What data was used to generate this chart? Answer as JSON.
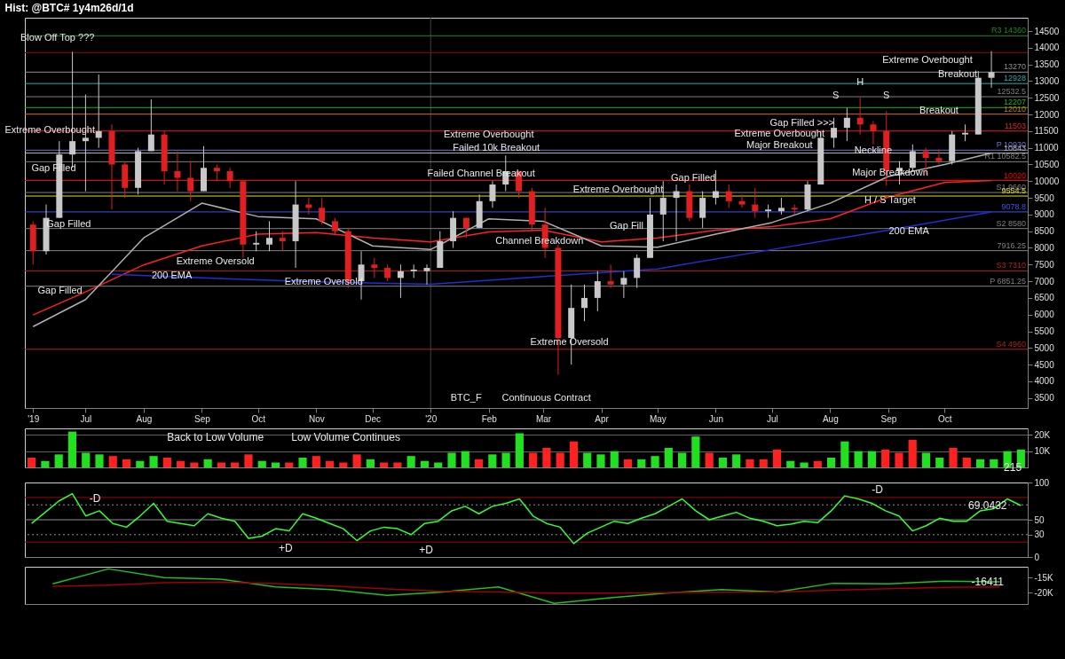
{
  "chart_data": [
    {
      "type": "candlestick",
      "title": "Hist: @BTC# 1y4m26d/1d",
      "x": [
        "2019-06-03",
        "2019-06-10",
        "2019-06-17",
        "2019-06-24",
        "2019-07-01",
        "2019-07-08",
        "2019-07-15",
        "2019-07-22",
        "2019-07-29",
        "2019-08-05",
        "2019-08-12",
        "2019-08-19",
        "2019-08-26",
        "2019-09-02",
        "2019-09-09",
        "2019-09-16",
        "2019-09-23",
        "2019-09-30",
        "2019-10-07",
        "2019-10-14",
        "2019-10-21",
        "2019-10-28",
        "2019-11-04",
        "2019-11-11",
        "2019-11-18",
        "2019-11-25",
        "2019-12-02",
        "2019-12-09",
        "2019-12-16",
        "2019-12-23",
        "2019-12-30",
        "2020-01-06",
        "2020-01-13",
        "2020-01-20",
        "2020-01-27",
        "2020-02-03",
        "2020-02-10",
        "2020-02-17",
        "2020-02-24",
        "2020-03-02",
        "2020-03-09",
        "2020-03-16",
        "2020-03-23",
        "2020-03-30",
        "2020-04-06",
        "2020-04-13",
        "2020-04-20",
        "2020-04-27",
        "2020-05-04",
        "2020-05-11",
        "2020-05-18",
        "2020-05-25",
        "2020-06-01",
        "2020-06-08",
        "2020-06-15",
        "2020-06-22",
        "2020-06-29",
        "2020-07-06",
        "2020-07-13",
        "2020-07-20",
        "2020-07-27",
        "2020-08-03",
        "2020-08-10",
        "2020-08-17",
        "2020-08-24",
        "2020-08-31",
        "2020-09-07",
        "2020-09-14",
        "2020-09-21",
        "2020-09-28",
        "2020-10-05",
        "2020-10-12",
        "2020-10-19",
        "2020-10-26"
      ],
      "ohlc": [
        [
          8700,
          8800,
          7500,
          7900
        ],
        [
          7900,
          9300,
          7800,
          8900
        ],
        [
          8900,
          11200,
          8900,
          10800
        ],
        [
          10800,
          13880,
          10400,
          11200
        ],
        [
          11200,
          12600,
          9700,
          11300
        ],
        [
          11300,
          13200,
          11000,
          11500
        ],
        [
          11500,
          11700,
          9150,
          10500
        ],
        [
          10500,
          10600,
          9500,
          9800
        ],
        [
          9800,
          11000,
          9600,
          10900
        ],
        [
          10900,
          12450,
          10900,
          11400
        ],
        [
          11400,
          11500,
          9900,
          10300
        ],
        [
          10300,
          10900,
          9700,
          10100
        ],
        [
          10100,
          10600,
          9400,
          9700
        ],
        [
          9700,
          11050,
          9700,
          10400
        ],
        [
          10400,
          10500,
          10000,
          10300
        ],
        [
          10300,
          10400,
          9800,
          10000
        ],
        [
          10000,
          10000,
          7700,
          8100
        ],
        [
          8100,
          8500,
          7900,
          8150
        ],
        [
          8100,
          8800,
          7900,
          8300
        ],
        [
          8300,
          8500,
          7900,
          8200
        ],
        [
          8200,
          10000,
          7400,
          9300
        ],
        [
          9300,
          9500,
          9000,
          9200
        ],
        [
          9200,
          9500,
          8700,
          8800
        ],
        [
          8800,
          8900,
          8400,
          8500
        ],
        [
          8500,
          8600,
          6800,
          7000
        ],
        [
          7000,
          7900,
          6450,
          7500
        ],
        [
          7500,
          7700,
          7100,
          7400
        ],
        [
          7400,
          7500,
          7000,
          7100
        ],
        [
          7100,
          7500,
          6500,
          7300
        ],
        [
          7300,
          7500,
          7100,
          7350
        ],
        [
          7300,
          7500,
          6900,
          7400
        ],
        [
          7400,
          8500,
          7400,
          8200
        ],
        [
          8200,
          9100,
          8000,
          8900
        ],
        [
          8900,
          8900,
          8300,
          8600
        ],
        [
          8600,
          9600,
          8600,
          9400
        ],
        [
          9400,
          10000,
          9200,
          9900
        ],
        [
          9900,
          10770,
          9700,
          10300
        ],
        [
          10300,
          10300,
          9500,
          9700
        ],
        [
          9700,
          9800,
          8500,
          8700
        ],
        [
          8700,
          9200,
          7700,
          8000
        ],
        [
          8000,
          8100,
          4200,
          5300
        ],
        [
          5300,
          6900,
          4500,
          6200
        ],
        [
          6200,
          6900,
          5800,
          6500
        ],
        [
          6500,
          7300,
          6100,
          7000
        ],
        [
          7000,
          7500,
          6800,
          6900
        ],
        [
          6900,
          7300,
          6500,
          7100
        ],
        [
          7100,
          7800,
          6800,
          7700
        ],
        [
          7700,
          9500,
          7700,
          9000
        ],
        [
          9000,
          10000,
          8200,
          9500
        ],
        [
          9500,
          9900,
          8200,
          9700
        ],
        [
          9700,
          9900,
          8800,
          8900
        ],
        [
          8900,
          9700,
          8600,
          9500
        ],
        [
          9500,
          10330,
          9300,
          9700
        ],
        [
          9700,
          9900,
          9200,
          9400
        ],
        [
          9400,
          9600,
          9200,
          9300
        ],
        [
          9300,
          9800,
          8900,
          9100
        ],
        [
          9100,
          9300,
          8900,
          9150
        ],
        [
          9100,
          9500,
          9000,
          9200
        ],
        [
          9200,
          9300,
          9000,
          9150
        ],
        [
          9150,
          10000,
          9100,
          9900
        ],
        [
          9900,
          11500,
          9900,
          11300
        ],
        [
          11300,
          11900,
          11000,
          11600
        ],
        [
          11600,
          12200,
          11200,
          11900
        ],
        [
          11900,
          12500,
          11400,
          11700
        ],
        [
          11700,
          11800,
          11100,
          11500
        ],
        [
          11500,
          12100,
          9870,
          10300
        ],
        [
          10300,
          10600,
          9900,
          10400
        ],
        [
          10400,
          11100,
          10300,
          10900
        ],
        [
          10900,
          11000,
          10200,
          10700
        ],
        [
          10700,
          10950,
          10500,
          10600
        ],
        [
          10600,
          11500,
          10500,
          11400
        ],
        [
          11400,
          11700,
          11200,
          11450
        ],
        [
          11400,
          13300,
          11400,
          13100
        ],
        [
          13100,
          13900,
          12800,
          13270
        ]
      ],
      "colors": [
        "#e02020",
        "#c8c8c8",
        "#c8c8c8",
        "#c8c8c8",
        "#c8c8c8",
        "#c8c8c8",
        "#e02020",
        "#e02020",
        "#c8c8c8",
        "#c8c8c8",
        "#e02020",
        "#e02020",
        "#e02020",
        "#c8c8c8",
        "#e02020",
        "#e02020",
        "#e02020",
        "#c8c8c8",
        "#c8c8c8",
        "#e02020",
        "#c8c8c8",
        "#e02020",
        "#e02020",
        "#e02020",
        "#e02020",
        "#c8c8c8",
        "#e02020",
        "#e02020",
        "#c8c8c8",
        "#c8c8c8",
        "#c8c8c8",
        "#c8c8c8",
        "#c8c8c8",
        "#e02020",
        "#c8c8c8",
        "#c8c8c8",
        "#c8c8c8",
        "#e02020",
        "#e02020",
        "#e02020",
        "#e02020",
        "#c8c8c8",
        "#c8c8c8",
        "#c8c8c8",
        "#e02020",
        "#c8c8c8",
        "#c8c8c8",
        "#c8c8c8",
        "#c8c8c8",
        "#c8c8c8",
        "#e02020",
        "#c8c8c8",
        "#c8c8c8",
        "#e02020",
        "#e02020",
        "#e02020",
        "#c8c8c8",
        "#c8c8c8",
        "#e02020",
        "#c8c8c8",
        "#c8c8c8",
        "#c8c8c8",
        "#c8c8c8",
        "#e02020",
        "#e02020",
        "#e02020",
        "#c8c8c8",
        "#c8c8c8",
        "#e02020",
        "#e02020",
        "#c8c8c8",
        "#c8c8c8",
        "#c8c8c8",
        "#c8c8c8"
      ],
      "series": [
        {
          "type": "line",
          "color": "#ff2020",
          "x": [
            "2019-06-03",
            "2019-07-01",
            "2019-08-01",
            "2019-09-01",
            "2019-10-01",
            "2019-11-01",
            "2019-12-01",
            "2020-01-01",
            "2020-02-01",
            "2020-03-01",
            "2020-04-01",
            "2020-05-01",
            "2020-06-01",
            "2020-07-01",
            "2020-08-01",
            "2020-09-01",
            "2020-10-01",
            "2020-10-26"
          ],
          "values": [
            5990,
            6680,
            7490,
            8060,
            8410,
            8460,
            8300,
            8180,
            8480,
            8530,
            8180,
            8300,
            8530,
            8640,
            8870,
            9520,
            9960,
            10020
          ]
        },
        {
          "type": "line",
          "color": "#b0b0b0",
          "x": [
            "2019-06-03",
            "2019-07-01",
            "2019-08-01",
            "2019-09-01",
            "2019-10-01",
            "2019-11-01",
            "2019-12-01",
            "2020-01-01",
            "2020-02-01",
            "2020-03-01",
            "2020-04-01",
            "2020-05-01",
            "2020-06-01",
            "2020-07-01",
            "2020-08-01",
            "2020-09-01",
            "2020-10-01",
            "2020-10-26"
          ],
          "values": [
            5640,
            6450,
            8300,
            9340,
            8940,
            8870,
            8060,
            7950,
            8870,
            8800,
            8060,
            8020,
            8410,
            8760,
            9340,
            10140,
            10500,
            10843
          ]
        },
        {
          "type": "line",
          "color": "#2030d0",
          "x": [
            "2019-07-15",
            "2019-09-01",
            "2019-11-01",
            "2020-01-01",
            "2020-03-01",
            "2020-05-01",
            "2020-07-01",
            "2020-09-01",
            "2020-10-26"
          ],
          "values": [
            7210,
            7100,
            6980,
            6910,
            7140,
            7370,
            7950,
            8530,
            9078.8
          ]
        }
      ],
      "xlim": [
        "2019-06-01",
        "2020-11-12"
      ],
      "xticks": [
        {
          "value": "2019-06-03",
          "label": "'19"
        },
        {
          "value": "2019-07-01",
          "label": "Jul"
        },
        {
          "value": "2019-08-01",
          "label": "Aug"
        },
        {
          "value": "2019-09-01",
          "label": "Sep"
        },
        {
          "value": "2019-10-01",
          "label": "Oct"
        },
        {
          "value": "2019-11-01",
          "label": "Nov"
        },
        {
          "value": "2019-12-01",
          "label": "Dec"
        },
        {
          "value": "2020-01-01",
          "label": "'20"
        },
        {
          "value": "2020-02-01",
          "label": "Feb"
        },
        {
          "value": "2020-03-01",
          "label": "Mar"
        },
        {
          "value": "2020-04-01",
          "label": "Apr"
        },
        {
          "value": "2020-05-01",
          "label": "May"
        },
        {
          "value": "2020-06-01",
          "label": "Jun"
        },
        {
          "value": "2020-07-01",
          "label": "Jul"
        },
        {
          "value": "2020-08-01",
          "label": "Aug"
        },
        {
          "value": "2020-09-01",
          "label": "Sep"
        },
        {
          "value": "2020-10-01",
          "label": "Oct"
        }
      ],
      "ylim": [
        3200,
        14900
      ],
      "yticks": [
        3500,
        4000,
        4500,
        5000,
        5500,
        6000,
        6500,
        7000,
        7500,
        8000,
        8500,
        9000,
        9500,
        10000,
        10500,
        11000,
        11500,
        12000,
        12500,
        13000,
        13500,
        14000,
        14500
      ],
      "ref_lines": [
        {
          "axis": "x",
          "value": "2020-01-01",
          "label": null,
          "color": "#404040"
        },
        {
          "axis": "y",
          "value": 14360,
          "label": "R3 14360",
          "color": "#1a8a1a"
        },
        {
          "axis": "y",
          "value": 13850,
          "label": null,
          "color": "#8b0000"
        },
        {
          "axis": "y",
          "value": 13270,
          "label": "13270",
          "color": "#909090"
        },
        {
          "axis": "y",
          "value": 12928,
          "label": "12928",
          "color": "#20b0b0"
        },
        {
          "axis": "y",
          "value": 12532.5,
          "label": "12532.5",
          "color": "#808080"
        },
        {
          "axis": "y",
          "value": 12207,
          "label": "12207",
          "color": "#20b020"
        },
        {
          "axis": "y",
          "value": 12010,
          "label": "12010",
          "color": "#d07020"
        },
        {
          "axis": "y",
          "value": 11503,
          "label": "11503",
          "color": "#e02020"
        },
        {
          "axis": "y",
          "value": 10930,
          "label": "P 10930",
          "color": "#7070d0"
        },
        {
          "axis": "y",
          "value": 10843,
          "label": "10843",
          "color": "#b8b8b8"
        },
        {
          "axis": "y",
          "value": 10582.5,
          "label": "R1 10582.5",
          "color": "#808080"
        },
        {
          "axis": "y",
          "value": 10020,
          "label": "10020",
          "color": "#ff0000"
        },
        {
          "axis": "y",
          "value": 9660,
          "label": "S1 9660",
          "color": "#808080"
        },
        {
          "axis": "y",
          "value": 9554.5,
          "label": "9554.5",
          "color": "#e0e020"
        },
        {
          "axis": "y",
          "value": 9078.8,
          "label": "9078.8",
          "color": "#4050f0"
        },
        {
          "axis": "y",
          "value": 8580,
          "label": "S2 8580",
          "color": "#808080"
        },
        {
          "axis": "y",
          "value": 7916.25,
          "label": "7916.25",
          "color": "#808080"
        },
        {
          "axis": "y",
          "value": 7310,
          "label": "S3 7310",
          "color": "#b02020"
        },
        {
          "axis": "y",
          "value": 6851.25,
          "label": "P 6851.25",
          "color": "#808080"
        },
        {
          "axis": "y",
          "value": 4960,
          "label": "S4 4960",
          "color": "#b02020"
        }
      ],
      "annotations": [
        {
          "text": "Blow Off Top ???",
          "x": "2019-06-16",
          "y": 14300
        },
        {
          "text": "Extreme Overbought",
          "x": "2019-06-12",
          "y": 11530
        },
        {
          "text": "Gap Filled",
          "x": "2019-06-14",
          "y": 10370
        },
        {
          "text": "Gap Filled",
          "x": "2019-06-22",
          "y": 8700
        },
        "Gap Filled",
        {
          "text": "200 EMA",
          "x": "2019-08-16",
          "y": 7150
        },
        "Extreme Oversold",
        {
          "text": "Extreme Oversold",
          "x": "2019-11-05",
          "y": 6980
        },
        "Failed Channel Breakout",
        {
          "text": "Failed 10k Breakout",
          "x": "2020-02-05",
          "y": 11000
        },
        {
          "text": "Extreme Overbought",
          "x": "2020-02-01",
          "y": 11400
        },
        {
          "text": "Channel Breakdown",
          "x": "2020-02-28",
          "y": 8200
        },
        {
          "text": "Extreme Oversold",
          "x": "2020-03-15",
          "y": 5180
        },
        {
          "text": "Extreme Overbought",
          "x": "2020-04-10",
          "y": 9750
        },
        "Gap Fill",
        {
          "text": "Gap Filled",
          "x": "2020-05-20",
          "y": 10100
        },
        "Gap Filled >>>",
        {
          "text": "Extreme Overbought",
          "x": "2020-07-05",
          "y": 11410
        },
        {
          "text": "Major Breakout",
          "x": "2020-07-05",
          "y": 11070
        },
        {
          "text": "S",
          "x": "2020-08-04",
          "y": 12550
        },
        {
          "text": "H",
          "x": "2020-08-17",
          "y": 12960
        },
        {
          "text": "S",
          "x": "2020-08-31",
          "y": 12550
        },
        {
          "text": "Neckline",
          "x": "2020-08-24",
          "y": 10900
        },
        {
          "text": "Major Breakdown",
          "x": "2020-09-02",
          "y": 10240
        },
        {
          "text": "H / S Target",
          "x": "2020-09-02",
          "y": 9420
        },
        {
          "text": "200 EMA",
          "x": "2020-09-12",
          "y": 8480
        },
        {
          "text": "Breakout",
          "x": "2020-09-28",
          "y": 12100
        },
        {
          "text": "Breakout",
          "x": "2020-10-08",
          "y": 13190
        },
        "Extreme Overbought",
        "BTC_F",
        "Continuous Contract"
      ]
    },
    {
      "type": "bar",
      "tick_labels": "y",
      "grid": "y",
      "categories": [
        null,
        null,
        null,
        null,
        null,
        null,
        null,
        null,
        null,
        null,
        null,
        null,
        null,
        null,
        null,
        null,
        null,
        null,
        null,
        null,
        null,
        null,
        null,
        null,
        null,
        null,
        null,
        null,
        null,
        null,
        null,
        null,
        null,
        null,
        null,
        null,
        null,
        null,
        null,
        null,
        null,
        null,
        null,
        null,
        null,
        null,
        null,
        null,
        null,
        null,
        null,
        null,
        null,
        null,
        null,
        null,
        null,
        null,
        null,
        null,
        null,
        null,
        null,
        null,
        null,
        null,
        null,
        null,
        null,
        null,
        null,
        null,
        null,
        null
      ],
      "values": [
        6000,
        4000,
        8000,
        22000,
        9000,
        8000,
        7000,
        5000,
        4000,
        7000,
        6000,
        4000,
        3000,
        5000,
        3000,
        3000,
        8000,
        4000,
        3000,
        3000,
        6000,
        7000,
        4000,
        3000,
        8000,
        5000,
        3000,
        3000,
        7000,
        4000,
        3000,
        9000,
        10000,
        5000,
        8000,
        9000,
        21000,
        9000,
        12000,
        9000,
        16000,
        9000,
        8000,
        10000,
        5000,
        5000,
        7000,
        12000,
        9000,
        19000,
        9000,
        6000,
        8000,
        5000,
        5000,
        11000,
        4000,
        3000,
        4000,
        6000,
        16000,
        10000,
        10000,
        11000,
        9000,
        17000,
        9000,
        6000,
        12000,
        6000,
        5000,
        5000,
        10000,
        11000
      ],
      "colors": [
        "#ff2020",
        "#20e020",
        "#20e020",
        "#20e020",
        "#20e020",
        "#20e020",
        "#ff2020",
        "#ff2020",
        "#20e020",
        "#20e020",
        "#ff2020",
        "#ff2020",
        "#ff2020",
        "#20e020",
        "#ff2020",
        "#ff2020",
        "#ff2020",
        "#20e020",
        "#20e020",
        "#ff2020",
        "#20e020",
        "#ff2020",
        "#ff2020",
        "#ff2020",
        "#ff2020",
        "#20e020",
        "#ff2020",
        "#ff2020",
        "#20e020",
        "#20e020",
        "#20e020",
        "#20e020",
        "#20e020",
        "#ff2020",
        "#20e020",
        "#20e020",
        "#20e020",
        "#ff2020",
        "#ff2020",
        "#ff2020",
        "#ff2020",
        "#20e020",
        "#20e020",
        "#20e020",
        "#ff2020",
        "#20e020",
        "#20e020",
        "#20e020",
        "#20e020",
        "#20e020",
        "#ff2020",
        "#20e020",
        "#20e020",
        "#ff2020",
        "#ff2020",
        "#ff2020",
        "#20e020",
        "#20e020",
        "#ff2020",
        "#20e020",
        "#20e020",
        "#20e020",
        "#20e020",
        "#ff2020",
        "#ff2020",
        "#ff2020",
        "#20e020",
        "#20e020",
        "#ff2020",
        "#ff2020",
        "#20e020",
        "#20e020",
        "#20e020",
        "#20e020"
      ],
      "ylim": [
        0,
        24000
      ],
      "yticks": [
        {
          "value": 10000,
          "label": "10K"
        },
        {
          "value": 20000,
          "label": "20K"
        }
      ],
      "annotations": [
        "Back to Low Volume",
        "Low Volume Continues",
        {
          "text": "215",
          "y": 215
        }
      ]
    },
    {
      "type": "line",
      "tick_labels": "y",
      "categories": [
        null,
        null,
        null,
        null,
        null,
        null,
        null,
        null,
        null,
        null,
        null,
        null,
        null,
        null,
        null,
        null,
        null,
        null,
        null,
        null,
        null,
        null,
        null,
        null,
        null,
        null,
        null,
        null,
        null,
        null,
        null,
        null,
        null,
        null,
        null,
        null,
        null,
        null,
        null,
        null,
        null,
        null,
        null,
        null,
        null,
        null,
        null,
        null,
        null,
        null,
        null,
        null,
        null,
        null,
        null,
        null,
        null,
        null,
        null,
        null,
        null,
        null,
        null,
        null,
        null,
        null,
        null,
        null,
        null,
        null,
        null,
        null,
        null,
        null
      ],
      "series": [
        {
          "color": "#30ff30",
          "values": [
            45,
            60,
            75,
            85,
            55,
            62,
            45,
            40,
            55,
            72,
            48,
            45,
            42,
            58,
            52,
            48,
            25,
            28,
            38,
            35,
            58,
            52,
            45,
            38,
            22,
            35,
            40,
            38,
            30,
            45,
            48,
            62,
            68,
            58,
            68,
            72,
            78,
            55,
            45,
            40,
            18,
            32,
            40,
            48,
            45,
            52,
            58,
            68,
            78,
            62,
            50,
            55,
            60,
            52,
            48,
            42,
            44,
            48,
            46,
            62,
            82,
            78,
            72,
            62,
            55,
            35,
            42,
            52,
            48,
            48,
            62,
            65,
            78,
            69
          ]
        }
      ],
      "ylim": [
        0,
        100
      ],
      "yticks": [
        0,
        30,
        50,
        100
      ],
      "ref_lines": [
        {
          "axis": "y",
          "value": 80,
          "label": null,
          "color": "#a00000"
        },
        {
          "axis": "y",
          "value": 70,
          "label": null,
          "color": "#909090",
          "line_style": "dotted"
        },
        {
          "axis": "y",
          "value": 50,
          "label": null,
          "color": "#909090"
        },
        {
          "axis": "y",
          "value": 30,
          "label": null,
          "color": "#909090",
          "line_style": "dotted"
        },
        {
          "axis": "y",
          "value": 20,
          "label": null,
          "color": "#a00000"
        }
      ],
      "annotations": [
        "-D",
        "+D",
        "+D",
        "-D",
        {
          "text": "69.0432",
          "y": 69.0432
        }
      ]
    },
    {
      "type": "line",
      "tick_labels": "y",
      "categories": [
        null,
        null,
        null,
        null,
        null,
        null,
        null,
        null,
        null,
        null,
        null,
        null,
        null,
        null,
        null,
        null,
        null,
        null
      ],
      "series": [
        {
          "color": "#20c020",
          "values": [
            -17100,
            -12100,
            -15000,
            -15500,
            -18100,
            -19000,
            -20900,
            -19800,
            -18100,
            -23600,
            -21700,
            -20200,
            -19000,
            -19800,
            -16900,
            -17100,
            -16200,
            -16411
          ]
        },
        {
          "color": "#a00000",
          "values": [
            -17900,
            -17500,
            -16700,
            -16500,
            -17000,
            -17800,
            -18800,
            -19600,
            -19800,
            -20200,
            -20200,
            -20000,
            -19900,
            -19800,
            -19200,
            -18700,
            -18300,
            -18100
          ]
        }
      ],
      "ylim": [
        -23800,
        -11400
      ],
      "yticks": [
        {
          "value": -15000,
          "label": "-15K"
        },
        {
          "value": -20000,
          "label": "-20K"
        }
      ],
      "annotations": [
        {
          "text": "-16411",
          "y": -16411
        }
      ]
    }
  ]
}
